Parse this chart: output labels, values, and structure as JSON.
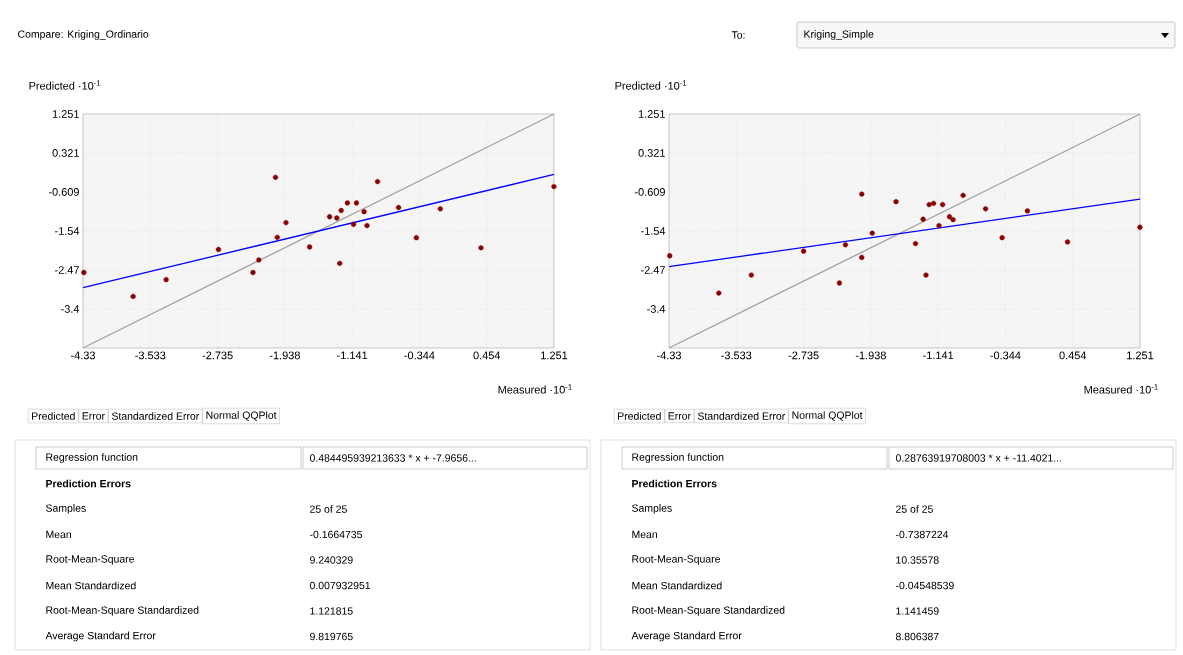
{
  "chart_data": [
    {
      "type": "scatter",
      "title": "Compare: Kriging_Ordinario",
      "xlabel": "Measured ·10$^{-1}$",
      "ylabel": "Predicted ·10$^{-1}$",
      "xlim": [
        -4.33,
        1.251
      ],
      "ylim": [
        -4.33,
        1.251
      ],
      "xticks": [
        -4.33,
        -3.533,
        -2.735,
        -1.938,
        -1.141,
        -0.344,
        0.454,
        1.251
      ],
      "yticks": [
        -3.4,
        -2.47,
        -1.54,
        -0.609,
        0.321,
        1.251
      ],
      "grid": true,
      "series": [
        {
          "type": "line",
          "color": "#a0a0a0",
          "x": [
            -4.33,
            1.251
          ],
          "values": [
            -4.33,
            1.25
          ]
        },
        {
          "type": "line",
          "color": "#0000ff",
          "x": [
            -4.33,
            1.251
          ],
          "values": [
            -2.89,
            -0.19
          ]
        },
        {
          "marker": "circle",
          "color": "#8b0000",
          "x": [
            -4.32,
            -3.736,
            -3.345,
            -2.725,
            -2.316,
            -2.247,
            -2.049,
            -2.028,
            -1.925,
            -1.645,
            -1.408,
            -1.322,
            -1.271,
            -1.288,
            -1.197,
            -1.124,
            -1.09,
            -0.999,
            -0.965,
            -0.84,
            -0.591,
            -0.38,
            -0.096,
            0.386,
            1.25
          ],
          "values": [
            -2.53,
            -3.1,
            -2.7,
            -1.98,
            -2.53,
            -2.23,
            -0.26,
            -1.69,
            -1.34,
            -1.92,
            -1.2,
            -1.23,
            -1.05,
            -2.31,
            -0.87,
            -1.38,
            -0.87,
            -1.08,
            -1.41,
            -0.36,
            -0.98,
            -1.7,
            -1.01,
            -1.94,
            -0.48
          ]
        }
      ]
    },
    {
      "type": "scatter",
      "title": "To:",
      "subtitle": "Kriging_Simple",
      "xlabel": "Measured ·10$^{-1}$",
      "ylabel": "Predicted ·10$^{-1}$",
      "xlim": [
        -4.33,
        1.251
      ],
      "ylim": [
        -4.33,
        1.251
      ],
      "xticks": [
        -4.33,
        -3.533,
        -2.735,
        -1.938,
        -1.141,
        -0.344,
        0.454,
        1.251
      ],
      "yticks": [
        -3.4,
        -2.47,
        -1.54,
        -0.609,
        0.321,
        1.251
      ],
      "grid": true,
      "series": [
        {
          "type": "line",
          "color": "#a0a0a0",
          "x": [
            -4.33,
            1.251
          ],
          "values": [
            -4.33,
            1.25
          ]
        },
        {
          "type": "line",
          "color": "#0000ff",
          "x": [
            -4.33,
            1.251
          ],
          "values": [
            -2.39,
            -0.78
          ]
        },
        {
          "marker": "circle",
          "color": "#8b0000",
          "x": [
            -4.321,
            -3.74,
            -3.355,
            -2.735,
            -2.311,
            -2.239,
            -2.046,
            -2.046,
            -1.922,
            -1.64,
            -1.409,
            -1.319,
            -1.285,
            -1.247,
            -1.195,
            -1.131,
            -1.088,
            -1.007,
            -0.964,
            -0.845,
            -0.579,
            -0.383,
            -0.083,
            0.392,
            1.25
          ],
          "values": [
            -2.13,
            -3.02,
            -2.59,
            -2.02,
            -2.78,
            -1.87,
            -0.66,
            -2.17,
            -1.59,
            -0.84,
            -1.84,
            -1.26,
            -2.59,
            -0.91,
            -0.88,
            -1.41,
            -0.91,
            -1.2,
            -1.27,
            -0.69,
            -1.01,
            -1.7,
            -1.06,
            -1.8,
            -1.45
          ]
        }
      ]
    },
    {
      "type": "other",
      "annotations": [
        "Predicted",
        "Error",
        "Standardized Error",
        "Normal QQPlot"
      ],
      "categories": [
        "Regression function",
        "Prediction Errors",
        "Samples",
        "Mean",
        "Root-Mean-Square",
        "Mean Standardized",
        "Root-Mean-Square Standardized",
        "Average Standard Error"
      ],
      "value_labels": [
        "0.484495939213633 * x + -7.9656...",
        null,
        "25 of 25",
        "-0.1664735",
        "9.240329",
        "0.007932951",
        "1.121815",
        "9.819765"
      ]
    },
    {
      "type": "other",
      "annotations": [
        "Predicted",
        "Error",
        "Standardized Error",
        "Normal QQPlot"
      ],
      "categories": [
        "Regression function",
        "Prediction Errors",
        "Samples",
        "Mean",
        "Root-Mean-Square",
        "Mean Standardized",
        "Root-Mean-Square Standardized",
        "Average Standard Error"
      ],
      "value_labels": [
        "0.28763919708003 * x + -11.4021...",
        null,
        "25 of 25",
        "-0.7387224",
        "10.35578",
        "-0.04548539",
        "1.141459",
        "8.806387"
      ]
    }
  ]
}
